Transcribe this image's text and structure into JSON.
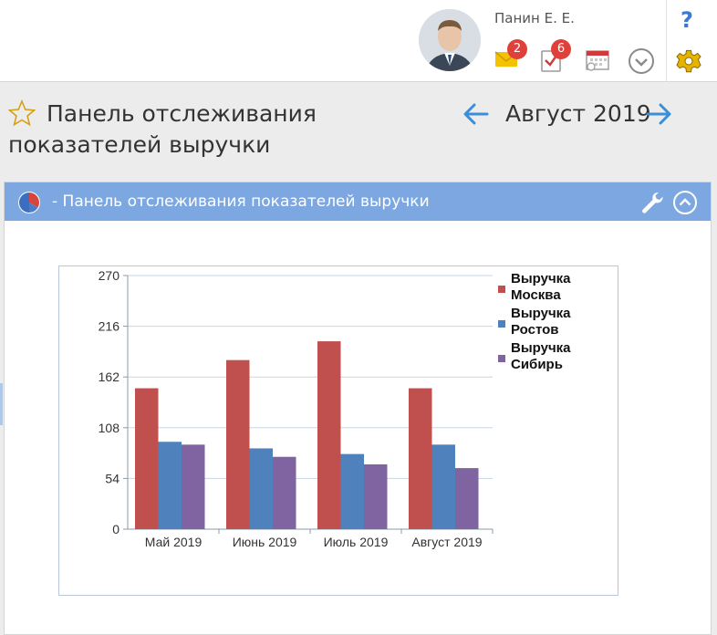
{
  "header": {
    "user_name": "Панин Е. Е.",
    "messages_badge": "2",
    "tasks_badge": "6",
    "help_label": "?"
  },
  "page": {
    "title": "Панель отслеживания показателей выручки",
    "period": "Август 2019"
  },
  "widget": {
    "title": "- Панель отслеживания показателей выручки"
  },
  "colors": {
    "accent": "#3a7bd5",
    "widget_header": "#7ca7e0",
    "series_moscow": "#c0504d",
    "series_rostov": "#4f81bd",
    "series_siberia": "#8064a2"
  },
  "icons": [
    "envelope-icon",
    "task-check-icon",
    "calendar-icon",
    "chevron-down-circle-icon",
    "gear-icon",
    "star-icon",
    "arrow-left-icon",
    "arrow-right-icon",
    "pie-chart-icon",
    "wrench-icon",
    "collapse-up-icon"
  ],
  "chart_data": {
    "type": "bar",
    "categories": [
      "Май 2019",
      "Июнь 2019",
      "Июль 2019",
      "Август 2019"
    ],
    "series": [
      {
        "name": "Выручка Москва",
        "legend_lines": [
          "Выручка",
          "Москва"
        ],
        "values": [
          150,
          180,
          200,
          150
        ]
      },
      {
        "name": "Выручка Ростов",
        "legend_lines": [
          "Выручка",
          "Ростов"
        ],
        "values": [
          93,
          86,
          80,
          90
        ]
      },
      {
        "name": "Выручка Сибирь",
        "legend_lines": [
          "Выручка",
          "Сибирь"
        ],
        "values": [
          90,
          77,
          69,
          65
        ]
      }
    ],
    "yticks": [
      0,
      54,
      108,
      162,
      216,
      270
    ],
    "ylim": [
      0,
      270
    ],
    "grid": true,
    "legend_position": "right",
    "title": "",
    "xlabel": "",
    "ylabel": ""
  }
}
